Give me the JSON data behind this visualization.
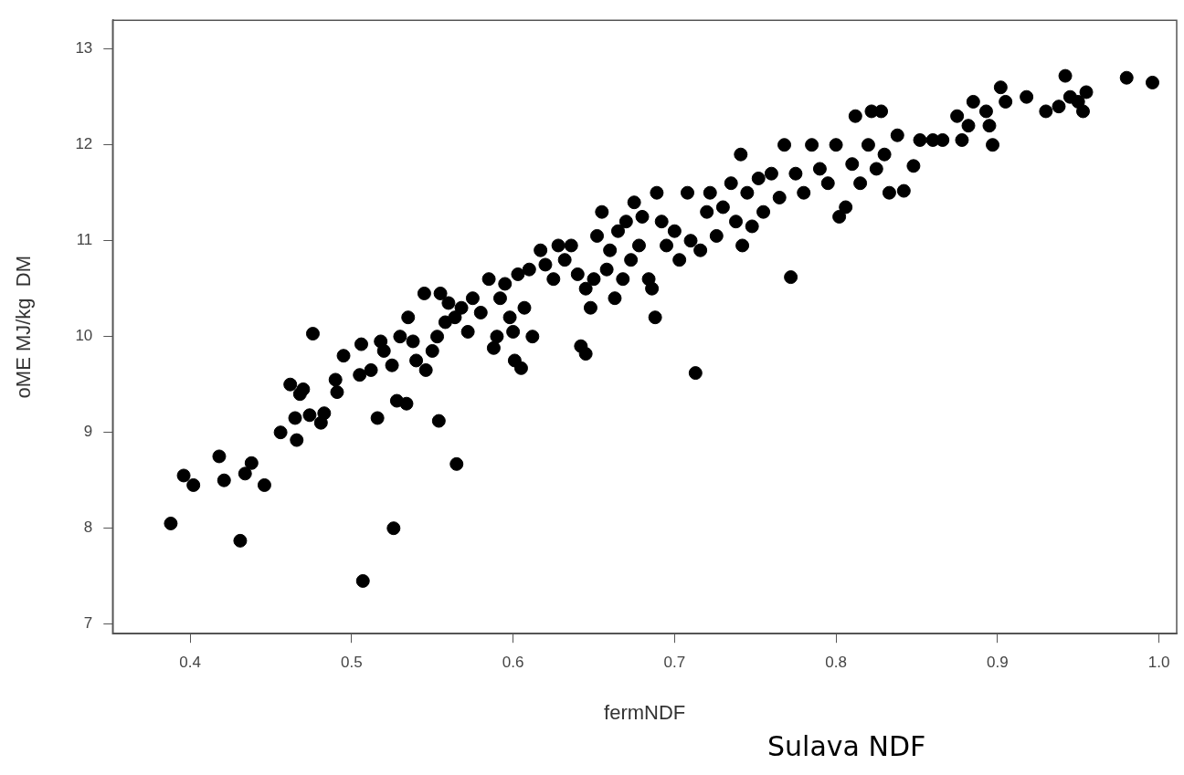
{
  "chart_data": {
    "type": "scatter",
    "xlabel": "fermNDF",
    "ylabel": "oME MJ/kg  DM",
    "annotations": [
      "Sulava NDF"
    ],
    "marker": "circle",
    "grid": false,
    "legend": false,
    "xlim": [
      0.352,
      1.011
    ],
    "xticks": [
      {
        "value": 0.4,
        "label": "0.4"
      },
      {
        "value": 0.5,
        "label": "0.5"
      },
      {
        "value": 0.6,
        "label": "0.6"
      },
      {
        "value": 0.7,
        "label": "0.7"
      },
      {
        "value": 0.8,
        "label": "0.8"
      },
      {
        "value": 0.9,
        "label": "0.9"
      },
      {
        "value": 1.0,
        "label": "1.0"
      }
    ],
    "ylim": [
      6.9,
      13.3
    ],
    "yticks": [
      7,
      8,
      9,
      10,
      11,
      12,
      13
    ],
    "series": [
      {
        "color": "#000000",
        "x": [
          0.388,
          0.396,
          0.402,
          0.418,
          0.421,
          0.431,
          0.434,
          0.438,
          0.446,
          0.456,
          0.462,
          0.465,
          0.466,
          0.468,
          0.47,
          0.474,
          0.476,
          0.481,
          0.483,
          0.49,
          0.491,
          0.495,
          0.505,
          0.506,
          0.507,
          0.512,
          0.516,
          0.518,
          0.52,
          0.525,
          0.526,
          0.528,
          0.53,
          0.534,
          0.535,
          0.538,
          0.54,
          0.545,
          0.546,
          0.55,
          0.553,
          0.554,
          0.555,
          0.558,
          0.56,
          0.564,
          0.565,
          0.568,
          0.572,
          0.575,
          0.58,
          0.585,
          0.588,
          0.59,
          0.592,
          0.595,
          0.598,
          0.6,
          0.601,
          0.603,
          0.605,
          0.607,
          0.61,
          0.612,
          0.617,
          0.62,
          0.625,
          0.628,
          0.632,
          0.636,
          0.64,
          0.642,
          0.645,
          0.645,
          0.648,
          0.65,
          0.652,
          0.655,
          0.658,
          0.66,
          0.663,
          0.665,
          0.668,
          0.67,
          0.673,
          0.675,
          0.678,
          0.68,
          0.684,
          0.686,
          0.688,
          0.689,
          0.692,
          0.695,
          0.7,
          0.703,
          0.708,
          0.71,
          0.713,
          0.716,
          0.72,
          0.722,
          0.726,
          0.73,
          0.735,
          0.738,
          0.741,
          0.742,
          0.745,
          0.748,
          0.752,
          0.755,
          0.76,
          0.765,
          0.768,
          0.772,
          0.775,
          0.78,
          0.785,
          0.79,
          0.795,
          0.8,
          0.802,
          0.806,
          0.81,
          0.812,
          0.815,
          0.82,
          0.822,
          0.825,
          0.828,
          0.83,
          0.833,
          0.838,
          0.842,
          0.848,
          0.852,
          0.86,
          0.866,
          0.875,
          0.878,
          0.882,
          0.885,
          0.893,
          0.895,
          0.897,
          0.902,
          0.905,
          0.918,
          0.93,
          0.938,
          0.942,
          0.945,
          0.95,
          0.953,
          0.955,
          0.98,
          0.996
        ],
        "values": [
          8.05,
          8.55,
          8.45,
          8.75,
          8.5,
          7.87,
          8.57,
          8.68,
          8.45,
          9.0,
          9.5,
          9.15,
          8.92,
          9.4,
          9.45,
          9.18,
          10.03,
          9.1,
          9.2,
          9.55,
          9.42,
          9.8,
          9.6,
          9.92,
          7.45,
          9.65,
          9.15,
          9.95,
          9.85,
          9.7,
          8.0,
          9.33,
          10.0,
          9.3,
          10.2,
          9.95,
          9.75,
          10.45,
          9.65,
          9.85,
          10.0,
          9.12,
          10.45,
          10.15,
          10.35,
          10.2,
          8.67,
          10.3,
          10.05,
          10.4,
          10.25,
          10.6,
          9.88,
          10.0,
          10.4,
          10.55,
          10.2,
          10.05,
          9.75,
          10.65,
          9.67,
          10.3,
          10.7,
          10.0,
          10.9,
          10.75,
          10.6,
          10.95,
          10.8,
          10.95,
          10.65,
          9.9,
          9.82,
          10.5,
          10.3,
          10.6,
          11.05,
          11.3,
          10.7,
          10.9,
          10.4,
          11.1,
          10.6,
          11.2,
          10.8,
          11.4,
          10.95,
          11.25,
          10.6,
          10.5,
          10.2,
          11.5,
          11.2,
          10.95,
          11.1,
          10.8,
          11.5,
          11.0,
          9.62,
          10.9,
          11.3,
          11.5,
          11.05,
          11.35,
          11.6,
          11.2,
          11.9,
          10.95,
          11.5,
          11.15,
          11.65,
          11.3,
          11.7,
          11.45,
          12.0,
          10.62,
          11.7,
          11.5,
          12.0,
          11.75,
          11.6,
          12.0,
          11.25,
          11.35,
          11.8,
          12.3,
          11.6,
          12.0,
          12.35,
          11.75,
          12.35,
          11.9,
          11.5,
          12.1,
          11.52,
          11.78,
          12.05,
          12.05,
          12.05,
          12.3,
          12.05,
          12.2,
          12.45,
          12.35,
          12.2,
          12.0,
          12.6,
          12.45,
          12.5,
          12.35,
          12.4,
          12.72,
          12.5,
          12.45,
          12.35,
          12.55,
          12.7,
          12.65
        ]
      }
    ]
  }
}
